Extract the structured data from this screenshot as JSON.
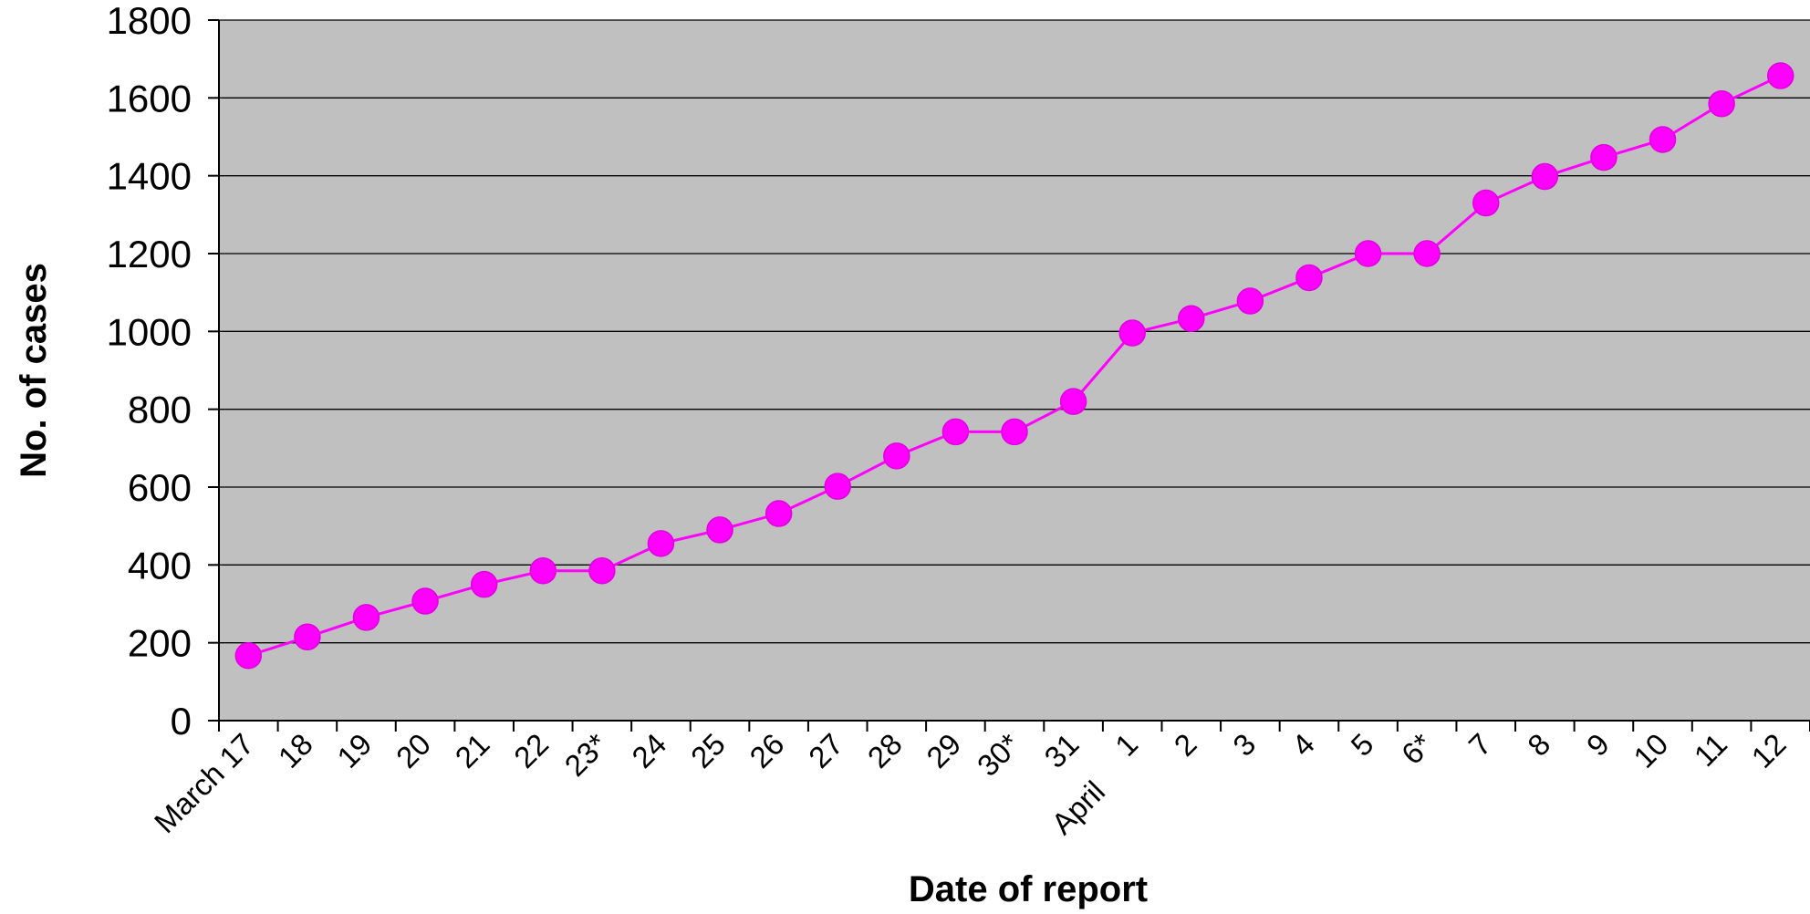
{
  "chart_data": {
    "type": "line",
    "xlabel": "Date of report",
    "ylabel": "No. of cases",
    "ylim": [
      0,
      1800
    ],
    "yticks": [
      0,
      200,
      400,
      600,
      800,
      1000,
      1200,
      1400,
      1600,
      1800
    ],
    "grid": true,
    "legend": "none",
    "colors": {
      "plot_background": "#c0c0c0",
      "line": "#ff00ff",
      "marker": "#ff00ff",
      "gridline": "#000000"
    },
    "categories": [
      "17",
      "18",
      "19",
      "20",
      "21",
      "22",
      "23*",
      "24",
      "25",
      "26",
      "27",
      "28",
      "29",
      "30*",
      "31",
      "1",
      "2",
      "3",
      "4",
      "5",
      "6*",
      "7",
      "8",
      "9",
      "10",
      "11",
      "12"
    ],
    "month_labels": [
      {
        "index": 0,
        "text": "March"
      },
      {
        "index": 15,
        "text": "April"
      }
    ],
    "series": [
      {
        "values": [
          167,
          215,
          265,
          307,
          350,
          385,
          385,
          455,
          490,
          532,
          602,
          680,
          742,
          742,
          820,
          996,
          1033,
          1078,
          1138,
          1200,
          1200,
          1330,
          1398,
          1447,
          1493,
          1585,
          1657
        ]
      }
    ]
  }
}
